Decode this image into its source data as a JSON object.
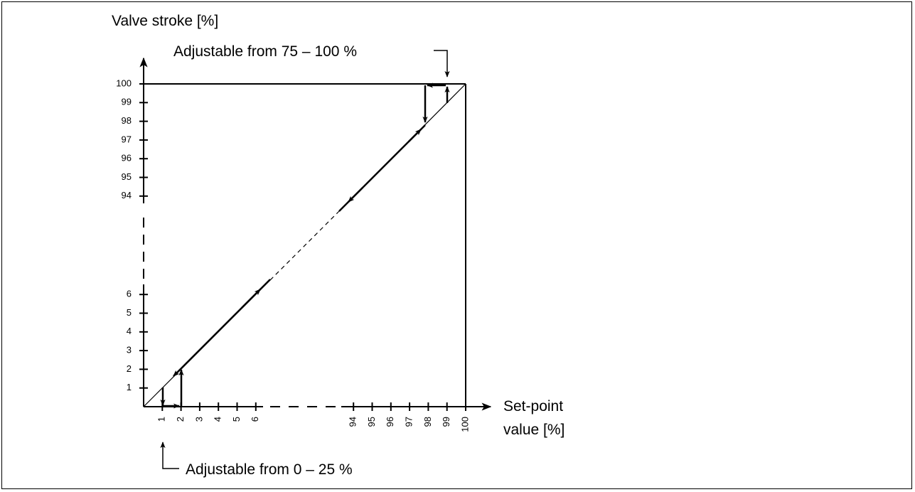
{
  "chart_data": {
    "type": "diagram",
    "ylabel": "Valve stroke [%]",
    "xlabel_line1": "Set-point",
    "xlabel_line2": "value [%]",
    "annotation_top": "Adjustable from 75 – 100 %",
    "annotation_bottom": "Adjustable from 0 – 25 %",
    "y_ticks_low": [
      "1",
      "2",
      "3",
      "4",
      "5",
      "6"
    ],
    "y_ticks_high": [
      "94",
      "95",
      "96",
      "97",
      "98",
      "99",
      "100"
    ],
    "x_ticks_low": [
      "1",
      "2",
      "3",
      "4",
      "5",
      "6"
    ],
    "x_ticks_high": [
      "94",
      "95",
      "96",
      "97",
      "98",
      "99",
      "100"
    ]
  }
}
